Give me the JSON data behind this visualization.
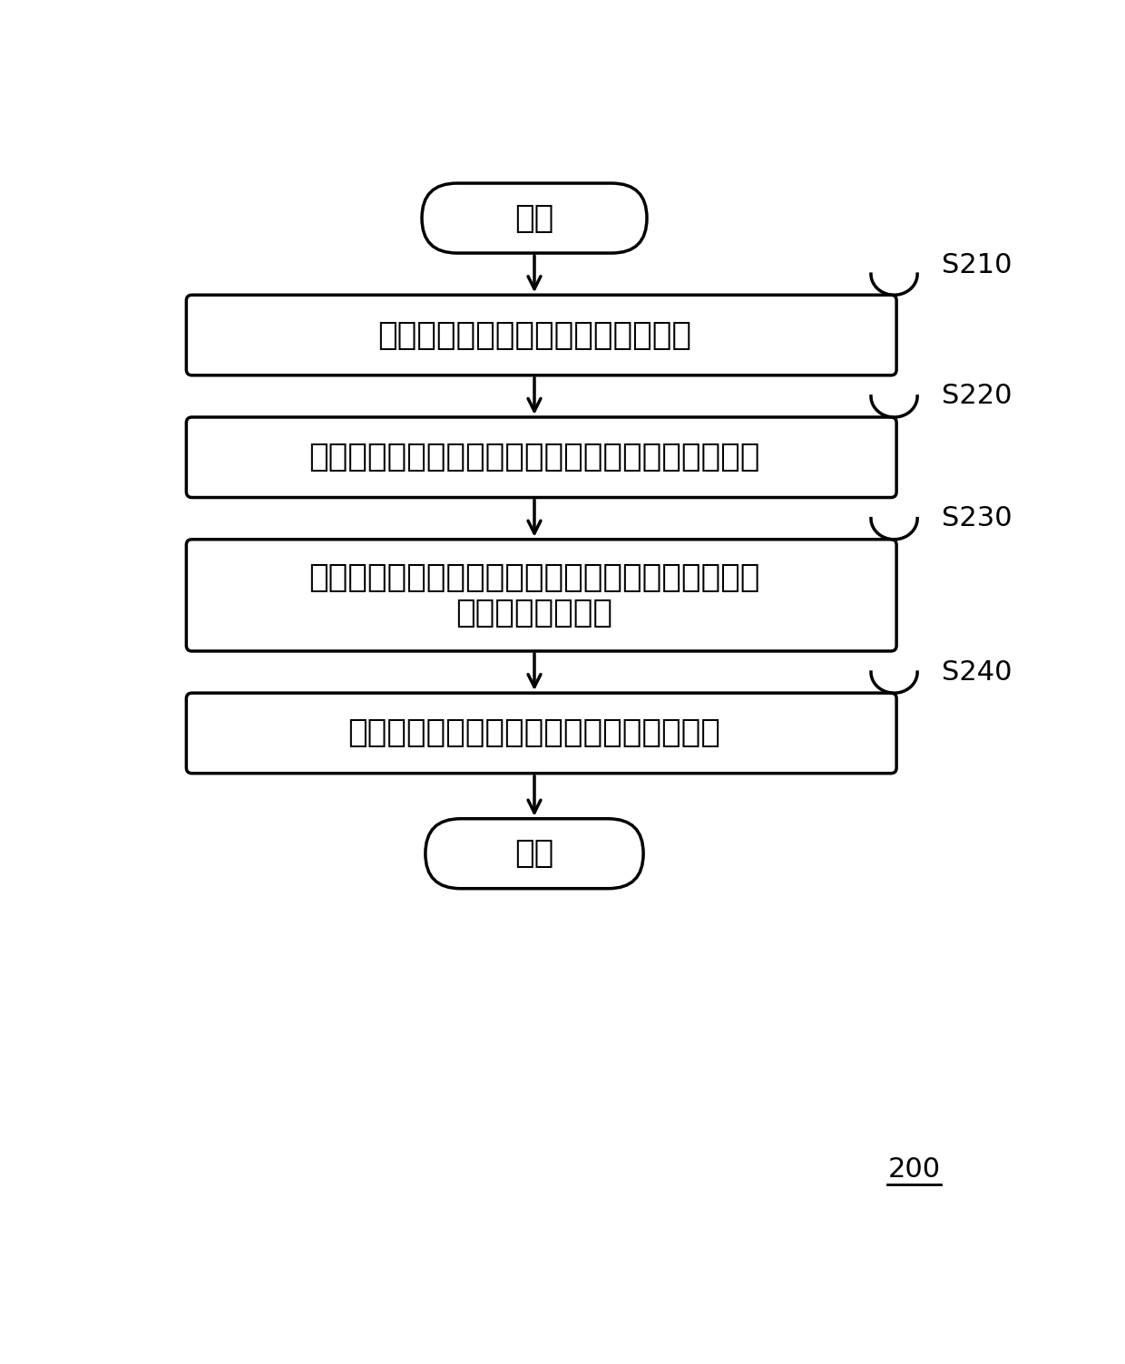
{
  "background_color": "#ffffff",
  "fig_width": 12.4,
  "fig_height": 15.04,
  "start_text": "开始",
  "end_text": "结束",
  "steps": [
    {
      "label": "每隔预定时间获取各地区的漏洞信息",
      "step_id": "S210"
    },
    {
      "label": "根据漏洞信息计算各时间段内各地区的漏洞修复速度",
      "step_id": "S220"
    },
    {
      "label": "将每个地区的漏洞修复速度与预设标准值分别进行对\n比，得到对比结果",
      "step_id": "S230"
    },
    {
      "label": "根据对比结果确定每个地区的安全防范能力",
      "step_id": "S240"
    }
  ],
  "label_200": "200",
  "box_facecolor": "#ffffff",
  "box_edgecolor": "#000000",
  "text_color": "#000000",
  "arrow_color": "#000000",
  "font_size_main": 26,
  "font_size_step": 22,
  "font_size_label": 22,
  "line_width": 2.5
}
